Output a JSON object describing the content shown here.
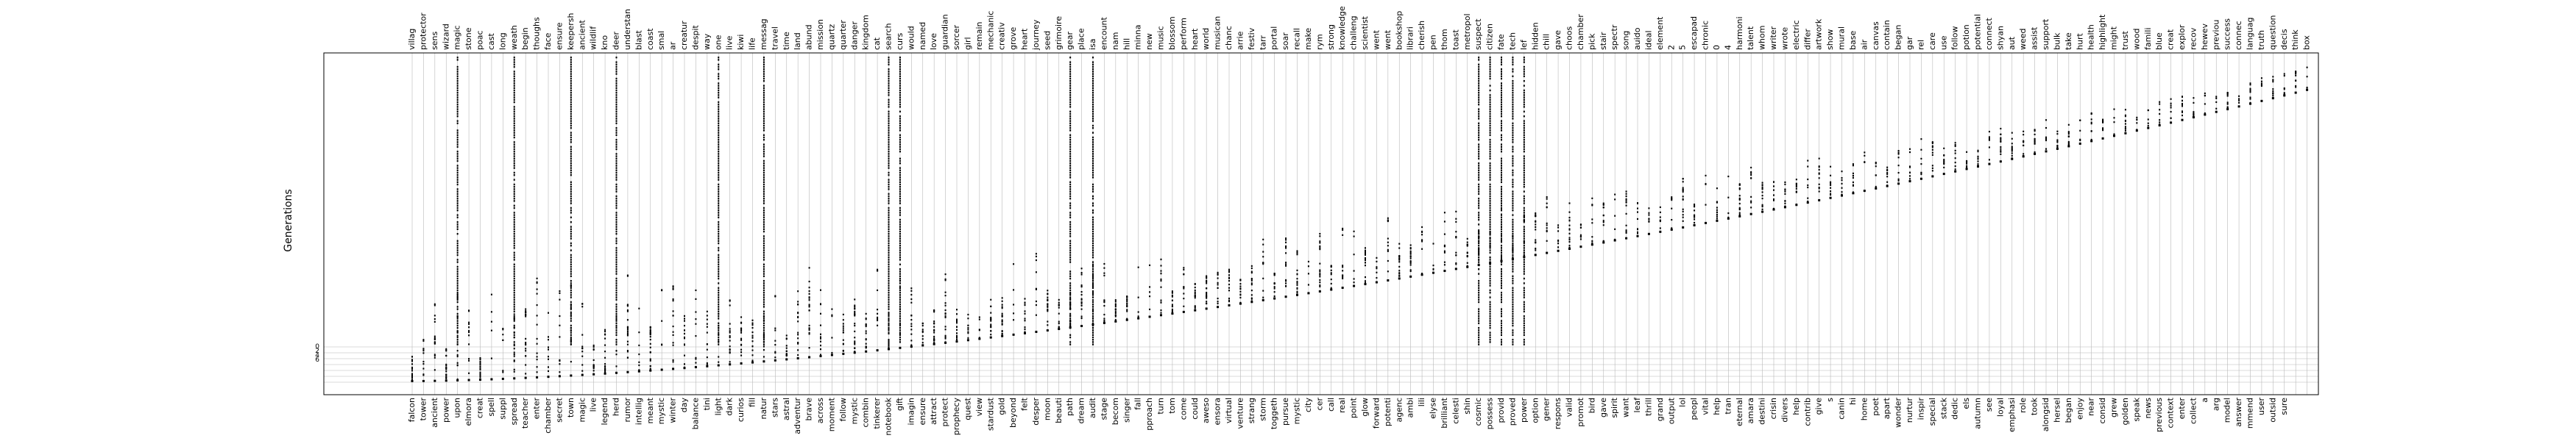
{
  "chart_data": {
    "type": "scatter",
    "ylabel": "Generations",
    "xlabel": "",
    "title": "",
    "grid": true,
    "legend": "none",
    "top_words": [
      "villag",
      "protector",
      "sens",
      "wizard",
      "magic",
      "stone",
      "poac",
      "cast",
      "long",
      "weath",
      "begin",
      "thoughs",
      "face",
      "ensure",
      "keepersh",
      "ancient",
      "wildlif",
      "kno",
      "deer",
      "understan",
      "blast",
      "coast",
      "smal",
      "ar",
      "creatur",
      "despit",
      "way",
      "one",
      "live",
      "kiwi",
      "life",
      "messag",
      "travel",
      "time",
      "land",
      "abund",
      "mission",
      "quartz",
      "quarter",
      "danger",
      "kingdom",
      "cat",
      "search",
      "curs",
      "would",
      "named",
      "love",
      "guardian",
      "sorcer",
      "girl",
      "remain",
      "mechanic",
      "creativ",
      "grove",
      "heart",
      "journey",
      "seed",
      "grimoire",
      "gear",
      "place",
      "isa",
      "encount",
      "nam",
      "hill",
      "minna",
      "new",
      "music",
      "blossom",
      "perform",
      "heart",
      "world",
      "musican",
      "chanc",
      "arrie",
      "festiv",
      "tarr",
      "portal",
      "soar",
      "recall",
      "make",
      "rym",
      "strong",
      "knowledge",
      "challeng",
      "scientist",
      "went",
      "went",
      "bookshop",
      "librari",
      "cherish",
      "pen",
      "thom",
      "toast",
      "metropol",
      "suspect",
      "citizen",
      "fate",
      "tech",
      "lef",
      "hidden",
      "chill",
      "gave",
      "choos",
      "chamber",
      "pick",
      "stair",
      "spectr",
      "song",
      "auido",
      "ideal",
      "element",
      "2",
      "5",
      "escapad",
      "chronic",
      "0",
      "4",
      "harmoni",
      "talent",
      "whom",
      "writer",
      "wrote",
      "electric",
      "differ",
      "artwork",
      "show",
      "mural",
      "base",
      "air",
      "canvas",
      "contain",
      "began",
      "gar",
      "rel",
      "care",
      "use",
      "follow",
      "potion",
      "potential",
      "connect",
      "shyan",
      "aut",
      "weed",
      "assist",
      "support",
      "bulk",
      "take",
      "hurt",
      "health",
      "highlight",
      "might",
      "trust",
      "wood",
      "famili",
      "blue",
      "creat",
      "explor",
      "recov",
      "hewev",
      "previou",
      "success",
      "connec",
      "languag",
      "truth",
      "question",
      "decis",
      "think",
      "box"
    ],
    "bottom_words": [
      "falcon",
      "tower",
      "ancient",
      "power",
      "upon",
      "elmora",
      "creat",
      "spell",
      "suppl",
      "spread",
      "teacher",
      "enter",
      "chamber",
      "secret",
      "town",
      "magic",
      "live",
      "legend",
      "herd",
      "rumor",
      "intellig",
      "meant",
      "mystic",
      "winter",
      "day",
      "balance",
      "tini",
      "light",
      "dark",
      "curios",
      "fill",
      "natur",
      "stars",
      "astral",
      "adventur",
      "brave",
      "across",
      "moment",
      "follow",
      "mystic",
      "combin",
      "tinkerer",
      "notebook",
      "gift",
      "imagin",
      "ensure",
      "attract",
      "protect",
      "prophecy",
      "quest",
      "view",
      "stardust",
      "gold",
      "beyond",
      "felt",
      "desper",
      "moon",
      "beauti",
      "path",
      "dream",
      "audit",
      "stage",
      "becom",
      "singer",
      "fall",
      "pproach",
      "turn",
      "tom",
      "come",
      "could",
      "aweso",
      "ensora",
      "virtual",
      "venture",
      "strang",
      "storm",
      "toggeth",
      "pursue",
      "mystic",
      "city",
      "cer",
      "call",
      "real",
      "point",
      "glow",
      "forward",
      "potenti",
      "agenc",
      "ambi",
      "lili",
      "elyse",
      "brilliant",
      "celesti",
      "shin",
      "cosmic",
      "possess",
      "provid",
      "proved",
      "power",
      "option",
      "gener",
      "respons",
      "valid",
      "promot",
      "bird",
      "gave",
      "spirit",
      "want",
      "leaf",
      "thrill",
      "grand",
      "output",
      "lol",
      "peopl",
      "vital",
      "help",
      "tran",
      "eternal",
      "amara",
      "destini",
      "crisin",
      "divers",
      "help",
      "contrib",
      "give",
      "s",
      "canin",
      "hi",
      "home",
      "poet",
      "apart",
      "wonder",
      "nurtur",
      "inspir",
      "special",
      "stack",
      "dedic",
      "els",
      "autumn",
      "see",
      "loyal",
      "emphasi",
      "role",
      "took",
      "alongsid",
      "hersel",
      "began",
      "enjoy",
      "near",
      "consid",
      "grew",
      "golden",
      "speak",
      "news",
      "previous",
      "context",
      "enter",
      "collect",
      "a",
      "arg",
      "model",
      "answer",
      "mmend",
      "user",
      "outsid",
      "sure"
    ],
    "y_ticks_visible": [
      "0",
      "2",
      "4",
      "6"
    ],
    "highlight_row": "Generations"
  }
}
